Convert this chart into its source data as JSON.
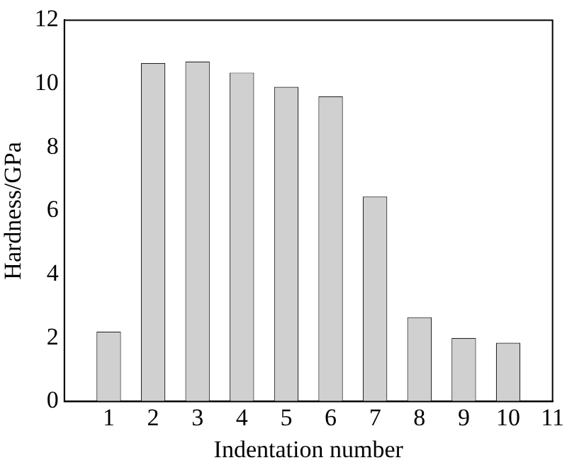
{
  "chart_data": {
    "type": "bar",
    "xlabel": "Indentation number",
    "ylabel": "Hardness/GPa",
    "x": [
      1,
      2,
      3,
      4,
      5,
      6,
      7,
      8,
      9,
      10
    ],
    "values": [
      2.2,
      10.65,
      10.7,
      10.35,
      9.9,
      9.6,
      6.45,
      2.65,
      2.0,
      1.85
    ],
    "color": "#d0d0d0",
    "xlim": [
      0,
      11
    ],
    "xticks": [
      1,
      2,
      3,
      4,
      5,
      6,
      7,
      8,
      9,
      10,
      11
    ],
    "ylim": [
      0,
      12
    ],
    "yticks": [
      0,
      2,
      4,
      6,
      8,
      10,
      12
    ],
    "grid": false,
    "legend": false
  }
}
